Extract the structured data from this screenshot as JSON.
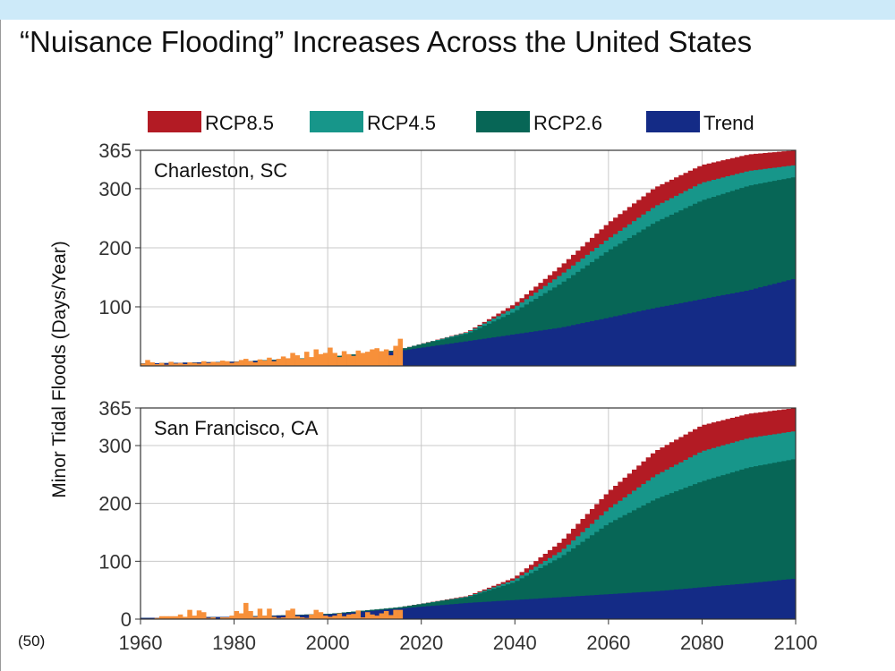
{
  "page": {
    "title": "“Nuisance Flooding” Increases Across the United States",
    "slide_number": "(50)"
  },
  "chart_data": {
    "type": "area",
    "title": "",
    "ylabel": "Minor Tidal Floods (Days/Year)",
    "xlabel": "",
    "x_ticks": [
      1960,
      1980,
      2000,
      2020,
      2040,
      2060,
      2080,
      2100
    ],
    "xlim": [
      1960,
      2100
    ],
    "ylim": [
      0,
      365
    ],
    "y_ticks": [
      "100",
      "200",
      "300",
      "365"
    ],
    "y_ticks_bottom": [
      "0",
      "100",
      "200",
      "300",
      "365"
    ],
    "grid": true,
    "legend_position": "top",
    "colors": {
      "rcp85": "#b31b24",
      "rcp45": "#17968a",
      "rcp26": "#076656",
      "trend": "#142b86",
      "observed": "#f7903a",
      "grid": "#c8c8c8"
    },
    "legend": [
      "RCP8.5",
      "RCP4.5",
      "RCP2.6",
      "Trend"
    ],
    "panels": [
      {
        "location": "Charleston, SC",
        "observed_years": [
          1960,
          1961,
          1962,
          1963,
          1964,
          1965,
          1966,
          1967,
          1968,
          1969,
          1970,
          1971,
          1972,
          1973,
          1974,
          1975,
          1976,
          1977,
          1978,
          1979,
          1980,
          1981,
          1982,
          1983,
          1984,
          1985,
          1986,
          1987,
          1988,
          1989,
          1990,
          1991,
          1992,
          1993,
          1994,
          1995,
          1996,
          1997,
          1998,
          1999,
          2000,
          2001,
          2002,
          2003,
          2004,
          2005,
          2006,
          2007,
          2008,
          2009,
          2010,
          2011,
          2012,
          2013,
          2014,
          2015
        ],
        "observed_days": [
          4,
          10,
          6,
          3,
          5,
          2,
          7,
          4,
          5,
          3,
          6,
          5,
          4,
          8,
          5,
          7,
          6,
          9,
          8,
          5,
          7,
          10,
          12,
          8,
          6,
          11,
          9,
          14,
          8,
          12,
          16,
          13,
          22,
          18,
          12,
          24,
          15,
          28,
          20,
          22,
          31,
          22,
          15,
          25,
          20,
          17,
          26,
          22,
          24,
          28,
          30,
          25,
          28,
          18,
          34,
          46
        ],
        "series": [
          {
            "name": "Trend",
            "years": [
              1960,
              1980,
              2000,
              2015,
              2030,
              2050,
              2070,
              2090,
              2100
            ],
            "values": [
              4,
              7,
              13,
              25,
              42,
              65,
              98,
              128,
              148
            ]
          },
          {
            "name": "RCP2.6",
            "years": [
              1960,
              1980,
              2000,
              2015,
              2030,
              2040,
              2050,
              2060,
              2070,
              2080,
              2090,
              2100
            ],
            "values": [
              4,
              7,
              15,
              27,
              55,
              92,
              140,
              195,
              243,
              280,
              305,
              320
            ]
          },
          {
            "name": "RCP4.5",
            "years": [
              1960,
              1980,
              2000,
              2015,
              2030,
              2040,
              2050,
              2060,
              2070,
              2080,
              2090,
              2100
            ],
            "values": [
              4,
              7,
              15,
              27,
              57,
              99,
              155,
              215,
              270,
              310,
              330,
              340
            ]
          },
          {
            "name": "RCP8.5",
            "years": [
              1960,
              1980,
              2000,
              2015,
              2030,
              2040,
              2050,
              2060,
              2070,
              2080,
              2090,
              2100
            ],
            "values": [
              4,
              7,
              15,
              27,
              58,
              105,
              170,
              242,
              302,
              340,
              358,
              365
            ]
          }
        ]
      },
      {
        "location": "San Francisco, CA",
        "observed_years": [
          1960,
          1961,
          1962,
          1963,
          1964,
          1965,
          1966,
          1967,
          1968,
          1969,
          1970,
          1971,
          1972,
          1973,
          1974,
          1975,
          1976,
          1977,
          1978,
          1979,
          1980,
          1981,
          1982,
          1983,
          1984,
          1985,
          1986,
          1987,
          1988,
          1989,
          1990,
          1991,
          1992,
          1993,
          1994,
          1995,
          1996,
          1997,
          1998,
          1999,
          2000,
          2001,
          2002,
          2003,
          2004,
          2005,
          2006,
          2007,
          2008,
          2009,
          2010,
          2011,
          2012,
          2013,
          2014,
          2015
        ],
        "observed_days": [
          0,
          0,
          0,
          2,
          5,
          5,
          5,
          5,
          8,
          4,
          16,
          6,
          15,
          12,
          2,
          3,
          0,
          3,
          3,
          6,
          14,
          10,
          28,
          14,
          4,
          18,
          6,
          18,
          4,
          2,
          3,
          15,
          18,
          5,
          3,
          2,
          8,
          16,
          12,
          6,
          4,
          6,
          10,
          5,
          8,
          9,
          15,
          3,
          12,
          8,
          6,
          10,
          14,
          7,
          16,
          16
        ],
        "series": [
          {
            "name": "Trend",
            "years": [
              1960,
              1980,
              2000,
              2015,
              2030,
              2050,
              2070,
              2090,
              2100
            ],
            "values": [
              2,
              4,
              8,
              18,
              28,
              38,
              48,
              62,
              70
            ]
          },
          {
            "name": "RCP2.6",
            "years": [
              1960,
              1980,
              2000,
              2015,
              2030,
              2040,
              2050,
              2060,
              2070,
              2080,
              2090,
              2100
            ],
            "values": [
              2,
              4,
              9,
              20,
              38,
              64,
              108,
              165,
              207,
              238,
              262,
              277
            ]
          },
          {
            "name": "RCP4.5",
            "years": [
              1960,
              1980,
              2000,
              2015,
              2030,
              2040,
              2050,
              2060,
              2070,
              2080,
              2090,
              2100
            ],
            "values": [
              2,
              4,
              9,
              20,
              39,
              68,
              118,
              190,
              248,
              290,
              313,
              325
            ]
          },
          {
            "name": "RCP8.5",
            "years": [
              1960,
              1980,
              2000,
              2015,
              2030,
              2040,
              2050,
              2060,
              2070,
              2080,
              2090,
              2100
            ],
            "values": [
              2,
              4,
              9,
              20,
              40,
              72,
              135,
              220,
              290,
              335,
              355,
              365
            ]
          }
        ]
      }
    ]
  }
}
